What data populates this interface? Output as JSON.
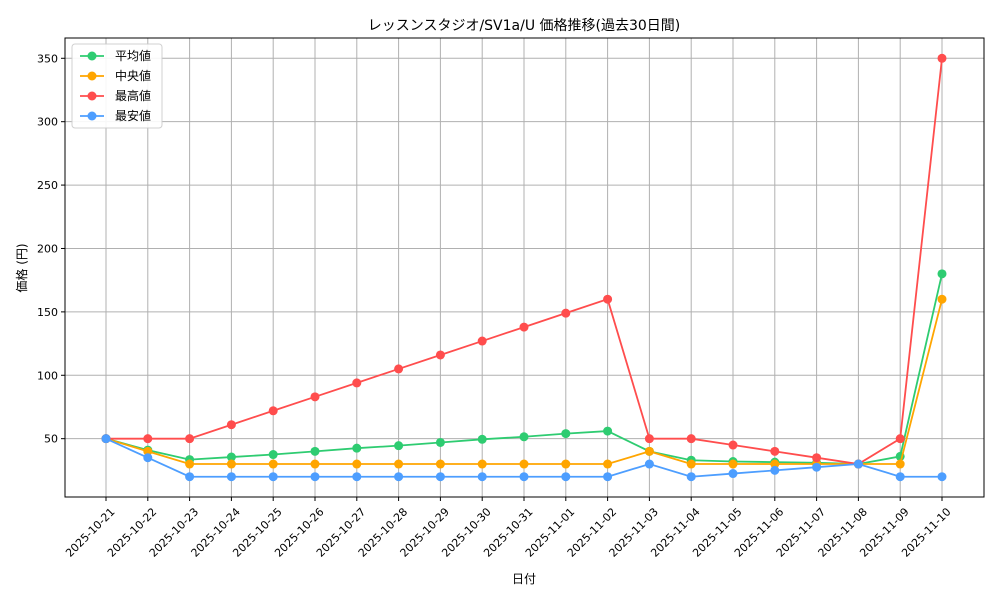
{
  "chart_data": {
    "type": "line",
    "title": "レッスンスタジオ/SV1a/U 価格推移(過去30日間)",
    "xlabel": "日付",
    "ylabel": "価格 (円)",
    "ylim": [
      4,
      366
    ],
    "yticks": [
      50,
      100,
      150,
      200,
      250,
      300,
      350
    ],
    "grid": true,
    "legend": "top-left",
    "x": [
      "2025-10-21",
      "2025-10-22",
      "2025-10-23",
      "2025-10-24",
      "2025-10-25",
      "2025-10-26",
      "2025-10-27",
      "2025-10-28",
      "2025-10-29",
      "2025-10-30",
      "2025-10-31",
      "2025-11-01",
      "2025-11-02",
      "2025-11-03",
      "2025-11-04",
      "2025-11-05",
      "2025-11-06",
      "2025-11-07",
      "2025-11-08",
      "2025-11-09",
      "2025-11-10"
    ],
    "series": [
      {
        "name": "平均値",
        "color": "#2ecc71",
        "values": [
          50,
          41,
          33.5,
          35.5,
          37.5,
          40,
          42.5,
          44.5,
          47,
          49.5,
          51.5,
          54,
          56,
          40,
          33,
          32,
          31.5,
          31,
          30,
          36,
          180
        ]
      },
      {
        "name": "中央値",
        "color": "#ffa500",
        "values": [
          50,
          40,
          30,
          30,
          30,
          30,
          30,
          30,
          30,
          30,
          30,
          30,
          30,
          40,
          30,
          30,
          30,
          30,
          30,
          30,
          160
        ]
      },
      {
        "name": "最高値",
        "color": "#ff4d4d",
        "values": [
          50,
          50,
          50,
          61,
          72,
          83,
          94,
          105,
          116,
          127,
          138,
          149,
          160,
          50,
          50,
          45,
          40,
          35,
          30,
          50,
          350
        ]
      },
      {
        "name": "最安値",
        "color": "#4d9eff",
        "values": [
          50,
          35,
          20,
          20,
          20,
          20,
          20,
          20,
          20,
          20,
          20,
          20,
          20,
          30,
          20,
          22.5,
          25,
          27.5,
          30,
          20,
          20
        ]
      }
    ]
  }
}
